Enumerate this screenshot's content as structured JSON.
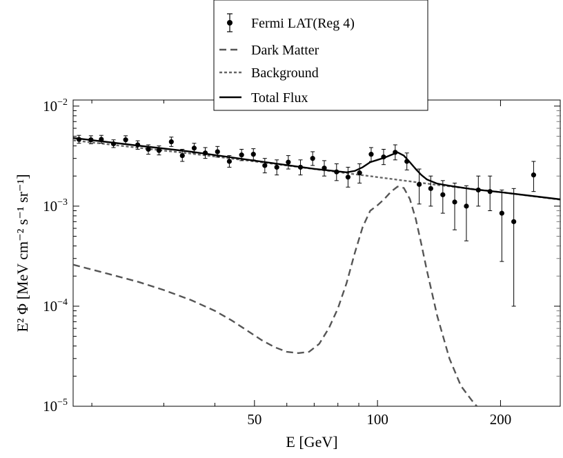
{
  "chart_data": {
    "type": "line",
    "xlabel": "E  [GeV]",
    "ylabel": "E² Φ  [MeV cm⁻² s⁻¹ sr⁻¹]",
    "xscale": "log",
    "yscale": "log",
    "xlim": [
      18,
      280
    ],
    "ylim": [
      1e-05,
      0.0115
    ],
    "x_ticks": [
      50,
      100,
      200
    ],
    "x_tick_labels": [
      "50",
      "100",
      "200"
    ],
    "y_ticks": [
      1e-05,
      0.0001,
      0.001,
      0.01
    ],
    "y_tick_labels": [
      {
        "base": "10",
        "exp": "−5"
      },
      {
        "base": "10",
        "exp": "−4"
      },
      {
        "base": "10",
        "exp": "−3"
      },
      {
        "base": "10",
        "exp": "−2"
      }
    ],
    "legend": {
      "position": "top-center",
      "entries": [
        {
          "label": "Fermi LAT(Reg 4)",
          "style": "points-errorbars"
        },
        {
          "label": "Dark Matter",
          "style": "dashed"
        },
        {
          "label": "Background",
          "style": "dotted"
        },
        {
          "label": "Total Flux",
          "style": "solid"
        }
      ]
    },
    "series": [
      {
        "name": "Fermi LAT(Reg 4)",
        "kind": "points",
        "color": "#000000",
        "points": [
          {
            "x": 18.6,
            "y": 0.00465,
            "lo": 0.00425,
            "hi": 0.0051
          },
          {
            "x": 19.9,
            "y": 0.0046,
            "lo": 0.0042,
            "hi": 0.00505
          },
          {
            "x": 21.1,
            "y": 0.00465,
            "lo": 0.00425,
            "hi": 0.0051
          },
          {
            "x": 22.6,
            "y": 0.0042,
            "lo": 0.00385,
            "hi": 0.0046
          },
          {
            "x": 24.2,
            "y": 0.0046,
            "lo": 0.0042,
            "hi": 0.00505
          },
          {
            "x": 25.9,
            "y": 0.0041,
            "lo": 0.0037,
            "hi": 0.0045
          },
          {
            "x": 27.5,
            "y": 0.0037,
            "lo": 0.0033,
            "hi": 0.0041
          },
          {
            "x": 29.2,
            "y": 0.0036,
            "lo": 0.00325,
            "hi": 0.004
          },
          {
            "x": 31.3,
            "y": 0.0044,
            "lo": 0.00395,
            "hi": 0.0049
          },
          {
            "x": 33.3,
            "y": 0.0032,
            "lo": 0.0028,
            "hi": 0.0037
          },
          {
            "x": 35.6,
            "y": 0.0038,
            "lo": 0.0034,
            "hi": 0.00425
          },
          {
            "x": 37.9,
            "y": 0.0034,
            "lo": 0.003,
            "hi": 0.00385
          },
          {
            "x": 40.6,
            "y": 0.0035,
            "lo": 0.0031,
            "hi": 0.00395
          },
          {
            "x": 43.4,
            "y": 0.0028,
            "lo": 0.00245,
            "hi": 0.0032
          },
          {
            "x": 46.5,
            "y": 0.00325,
            "lo": 0.00285,
            "hi": 0.0037
          },
          {
            "x": 49.7,
            "y": 0.0033,
            "lo": 0.0029,
            "hi": 0.00375
          },
          {
            "x": 53.0,
            "y": 0.00255,
            "lo": 0.00215,
            "hi": 0.003
          },
          {
            "x": 56.7,
            "y": 0.00245,
            "lo": 0.00205,
            "hi": 0.0029
          },
          {
            "x": 60.5,
            "y": 0.00275,
            "lo": 0.00235,
            "hi": 0.0032
          },
          {
            "x": 64.8,
            "y": 0.00245,
            "lo": 0.00205,
            "hi": 0.0029
          },
          {
            "x": 69.4,
            "y": 0.003,
            "lo": 0.00255,
            "hi": 0.0035
          },
          {
            "x": 74.1,
            "y": 0.0024,
            "lo": 0.002,
            "hi": 0.00285
          },
          {
            "x": 79.4,
            "y": 0.0022,
            "lo": 0.0018,
            "hi": 0.00265
          },
          {
            "x": 84.7,
            "y": 0.00195,
            "lo": 0.00155,
            "hi": 0.00245
          },
          {
            "x": 90.4,
            "y": 0.00215,
            "lo": 0.0017,
            "hi": 0.00265
          },
          {
            "x": 96.5,
            "y": 0.0033,
            "lo": 0.0028,
            "hi": 0.00385
          },
          {
            "x": 103.5,
            "y": 0.0031,
            "lo": 0.0026,
            "hi": 0.0037
          },
          {
            "x": 110.5,
            "y": 0.00345,
            "lo": 0.0029,
            "hi": 0.0041
          },
          {
            "x": 118.0,
            "y": 0.0028,
            "lo": 0.0023,
            "hi": 0.0034
          },
          {
            "x": 126.5,
            "y": 0.00165,
            "lo": 0.00105,
            "hi": 0.00235
          },
          {
            "x": 135.0,
            "y": 0.0015,
            "lo": 0.001,
            "hi": 0.002
          },
          {
            "x": 144.5,
            "y": 0.0013,
            "lo": 0.00085,
            "hi": 0.0018
          },
          {
            "x": 154.5,
            "y": 0.0011,
            "lo": 0.00058,
            "hi": 0.0017
          },
          {
            "x": 165.0,
            "y": 0.001,
            "lo": 0.00045,
            "hi": 0.0016
          },
          {
            "x": 176.5,
            "y": 0.00145,
            "lo": 0.001,
            "hi": 0.002
          },
          {
            "x": 188.5,
            "y": 0.0014,
            "lo": 0.0009,
            "hi": 0.002
          },
          {
            "x": 201.5,
            "y": 0.00085,
            "lo": 0.00028,
            "hi": 0.00145
          },
          {
            "x": 215.5,
            "y": 0.0007,
            "lo": 0.0001,
            "hi": 0.0015
          },
          {
            "x": 241.0,
            "y": 0.00205,
            "lo": 0.0014,
            "hi": 0.0028
          }
        ]
      },
      {
        "name": "Dark Matter",
        "kind": "line",
        "style": "dashed",
        "color": "#555555",
        "x": [
          18,
          22,
          26,
          30,
          35,
          40,
          44,
          48,
          52,
          56,
          60,
          64,
          68,
          72,
          76,
          80,
          84,
          88,
          92,
          96,
          100,
          104,
          108,
          112,
          116,
          120,
          124,
          128,
          132,
          140,
          150,
          160,
          170,
          175
        ],
        "y": [
          0.00026,
          0.00021,
          0.000175,
          0.000145,
          0.000115,
          9e-05,
          7.2e-05,
          5.7e-05,
          4.6e-05,
          3.9e-05,
          3.5e-05,
          3.4e-05,
          3.5e-05,
          4.2e-05,
          6e-05,
          9.5e-05,
          0.00017,
          0.00034,
          0.00062,
          0.0009,
          0.00102,
          0.00118,
          0.0014,
          0.00157,
          0.00152,
          0.00118,
          0.00075,
          0.00042,
          0.00023,
          8e-05,
          3e-05,
          1.6e-05,
          1.15e-05,
          1e-05
        ]
      },
      {
        "name": "Background",
        "kind": "line",
        "style": "dotted",
        "color": "#666666",
        "x": [
          18,
          25,
          35,
          50,
          70,
          100,
          140,
          200,
          280
        ],
        "y": [
          0.00455,
          0.0039,
          0.00335,
          0.0028,
          0.00235,
          0.00195,
          0.00163,
          0.00138,
          0.00116
        ]
      },
      {
        "name": "Total Flux",
        "kind": "line",
        "style": "solid",
        "color": "#000000",
        "x": [
          18,
          25,
          35,
          50,
          70,
          84,
          88,
          92,
          96,
          100,
          104,
          108,
          112,
          116,
          120,
          124,
          128,
          132,
          140,
          150,
          170,
          200,
          280
        ],
        "y": [
          0.0048,
          0.0041,
          0.0035,
          0.00285,
          0.00236,
          0.00218,
          0.00225,
          0.00245,
          0.00275,
          0.0029,
          0.00305,
          0.00325,
          0.00345,
          0.0032,
          0.00275,
          0.00235,
          0.00205,
          0.00185,
          0.00168,
          0.0016,
          0.00148,
          0.00138,
          0.00117
        ]
      }
    ]
  }
}
